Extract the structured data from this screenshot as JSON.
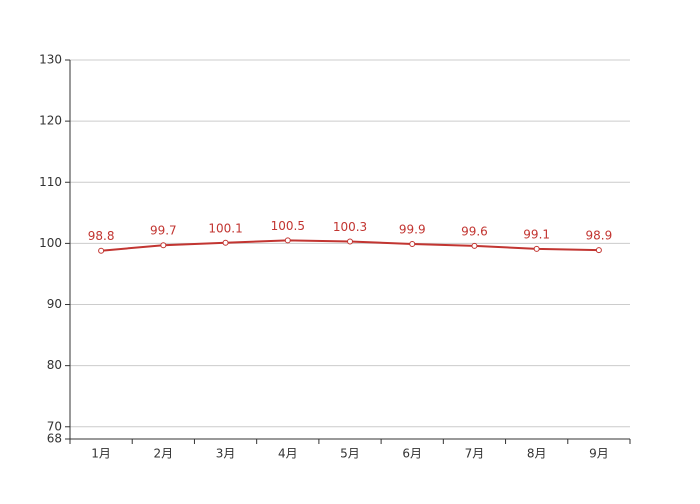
{
  "chart_data": {
    "type": "line",
    "categories": [
      "1月",
      "2月",
      "3月",
      "4月",
      "5月",
      "6月",
      "7月",
      "8月",
      "9月"
    ],
    "values": [
      98.8,
      99.7,
      100.1,
      100.5,
      100.3,
      99.9,
      99.6,
      99.1,
      98.9
    ],
    "color": "#c23531",
    "ylim": [
      68,
      130
    ],
    "yticks": [
      68,
      70,
      80,
      90,
      100,
      110,
      120,
      130
    ],
    "grid": true
  }
}
